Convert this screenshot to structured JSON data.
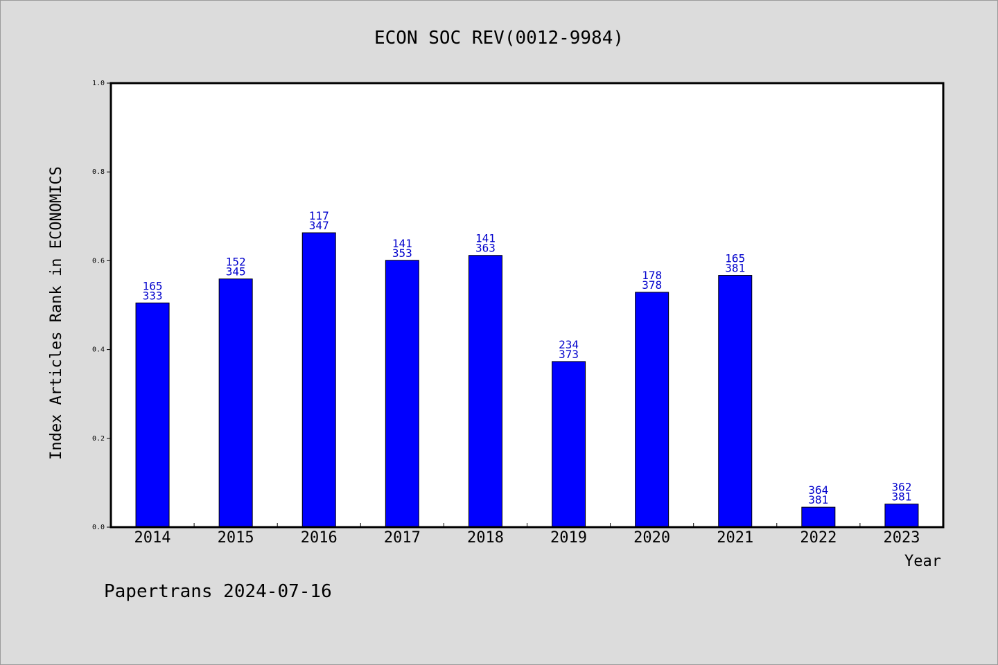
{
  "chart_data": {
    "type": "bar",
    "title": "ECON SOC REV(0012-9984)",
    "xlabel": "Year",
    "ylabel": "Index Articles Rank in ECONOMICS",
    "ylim": [
      0,
      1.0
    ],
    "yticks": [
      "0.0",
      "0.2",
      "0.4",
      "0.6",
      "0.8",
      "1.0"
    ],
    "categories": [
      "2014",
      "2015",
      "2016",
      "2017",
      "2018",
      "2019",
      "2020",
      "2021",
      "2022",
      "2023"
    ],
    "values": [
      0.505,
      0.559,
      0.663,
      0.601,
      0.612,
      0.373,
      0.529,
      0.567,
      0.045,
      0.052
    ],
    "rank_labels": [
      "165",
      "152",
      "117",
      "141",
      "141",
      "234",
      "178",
      "165",
      "364",
      "362"
    ],
    "total_labels": [
      "333",
      "345",
      "347",
      "353",
      "363",
      "373",
      "378",
      "381",
      "381",
      "381"
    ],
    "bar_color": "#0000ff",
    "label_color": "#0000cc",
    "grid": false,
    "legend": "none"
  },
  "footer": "Papertrans 2024-07-16"
}
